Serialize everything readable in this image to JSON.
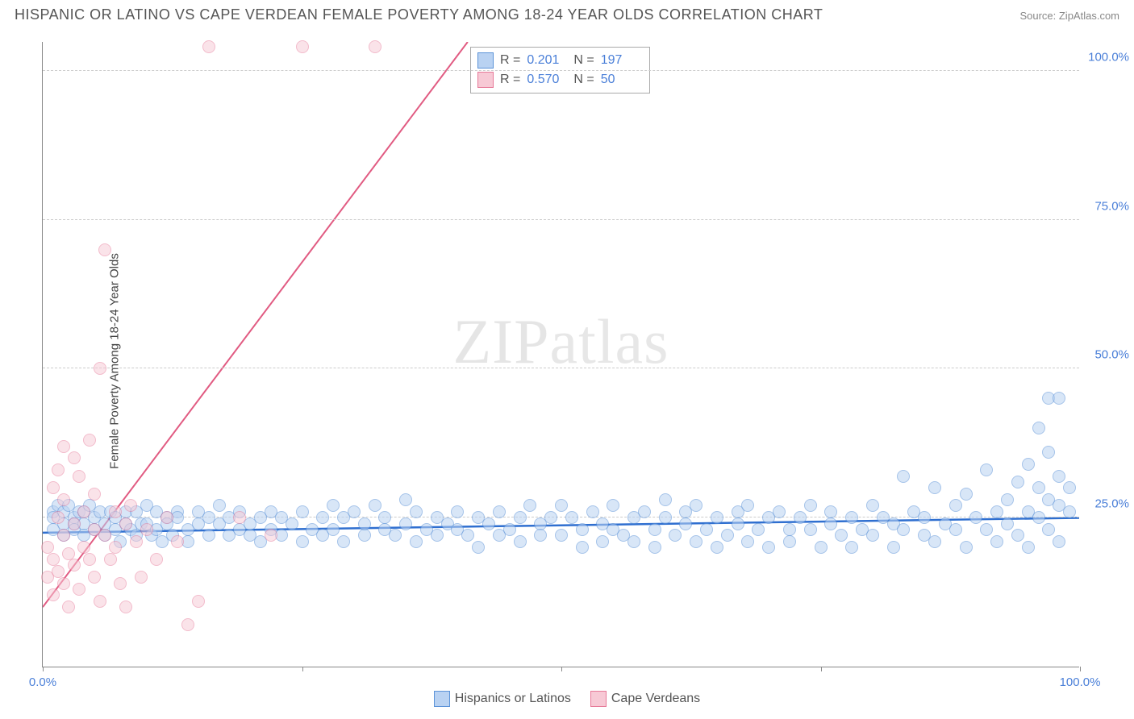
{
  "title": "HISPANIC OR LATINO VS CAPE VERDEAN FEMALE POVERTY AMONG 18-24 YEAR OLDS CORRELATION CHART",
  "source": "Source: ZipAtlas.com",
  "ylabel": "Female Poverty Among 18-24 Year Olds",
  "watermark_a": "ZIP",
  "watermark_b": "atlas",
  "chart": {
    "type": "scatter",
    "xlim": [
      0,
      100
    ],
    "ylim": [
      0,
      105
    ],
    "xtick_min_label": "0.0%",
    "xtick_max_label": "100.0%",
    "xtick_positions": [
      0,
      25,
      50,
      75,
      100
    ],
    "yticks": [
      {
        "v": 25,
        "label": "25.0%"
      },
      {
        "v": 50,
        "label": "50.0%"
      },
      {
        "v": 75,
        "label": "75.0%"
      },
      {
        "v": 100,
        "label": "100.0%"
      }
    ],
    "grid_color": "#cccccc",
    "background_color": "#ffffff",
    "point_radius": 8,
    "point_stroke_w": 1.2,
    "series": [
      {
        "name": "Hispanics or Latinos",
        "fill": "#b9d2f2",
        "stroke": "#5c93d8",
        "fill_opacity": 0.55,
        "trend": {
          "x1": 0,
          "y1": 22.5,
          "x2": 100,
          "y2": 25.0,
          "color": "#2f6fd0",
          "width": 2.5
        },
        "stats": {
          "R": "0.201",
          "N": "197"
        },
        "points": [
          [
            1,
            26
          ],
          [
            1,
            25
          ],
          [
            1,
            23
          ],
          [
            1.5,
            27
          ],
          [
            2,
            26
          ],
          [
            2,
            24
          ],
          [
            2,
            22
          ],
          [
            2.5,
            27
          ],
          [
            3,
            25
          ],
          [
            3,
            24
          ],
          [
            3,
            23
          ],
          [
            3.5,
            26
          ],
          [
            4,
            26
          ],
          [
            4,
            24
          ],
          [
            4,
            22
          ],
          [
            4.5,
            27
          ],
          [
            5,
            25
          ],
          [
            5,
            23
          ],
          [
            5.5,
            26
          ],
          [
            6,
            22
          ],
          [
            6,
            24
          ],
          [
            6.5,
            26
          ],
          [
            7,
            23
          ],
          [
            7,
            25
          ],
          [
            7.5,
            21
          ],
          [
            8,
            26
          ],
          [
            8,
            24
          ],
          [
            8.5,
            23
          ],
          [
            9,
            26
          ],
          [
            9,
            22
          ],
          [
            9.5,
            24
          ],
          [
            10,
            27
          ],
          [
            10,
            24
          ],
          [
            10.5,
            22
          ],
          [
            11,
            26
          ],
          [
            11,
            23
          ],
          [
            11.5,
            21
          ],
          [
            12,
            25
          ],
          [
            12,
            24
          ],
          [
            12.5,
            22
          ],
          [
            13,
            26
          ],
          [
            13,
            25
          ],
          [
            14,
            23
          ],
          [
            14,
            21
          ],
          [
            15,
            26
          ],
          [
            15,
            24
          ],
          [
            16,
            22
          ],
          [
            16,
            25
          ],
          [
            17,
            24
          ],
          [
            17,
            27
          ],
          [
            18,
            22
          ],
          [
            18,
            25
          ],
          [
            19,
            23
          ],
          [
            19,
            26
          ],
          [
            20,
            22
          ],
          [
            20,
            24
          ],
          [
            21,
            25
          ],
          [
            21,
            21
          ],
          [
            22,
            26
          ],
          [
            22,
            23
          ],
          [
            23,
            22
          ],
          [
            23,
            25
          ],
          [
            24,
            24
          ],
          [
            25,
            26
          ],
          [
            25,
            21
          ],
          [
            26,
            23
          ],
          [
            27,
            25
          ],
          [
            27,
            22
          ],
          [
            28,
            27
          ],
          [
            28,
            23
          ],
          [
            29,
            25
          ],
          [
            29,
            21
          ],
          [
            30,
            26
          ],
          [
            31,
            22
          ],
          [
            31,
            24
          ],
          [
            32,
            27
          ],
          [
            33,
            23
          ],
          [
            33,
            25
          ],
          [
            34,
            22
          ],
          [
            35,
            28
          ],
          [
            35,
            24
          ],
          [
            36,
            26
          ],
          [
            36,
            21
          ],
          [
            37,
            23
          ],
          [
            38,
            25
          ],
          [
            38,
            22
          ],
          [
            39,
            24
          ],
          [
            40,
            26
          ],
          [
            40,
            23
          ],
          [
            41,
            22
          ],
          [
            42,
            25
          ],
          [
            42,
            20
          ],
          [
            43,
            24
          ],
          [
            44,
            26
          ],
          [
            44,
            22
          ],
          [
            45,
            23
          ],
          [
            46,
            25
          ],
          [
            46,
            21
          ],
          [
            47,
            27
          ],
          [
            48,
            24
          ],
          [
            48,
            22
          ],
          [
            49,
            25
          ],
          [
            50,
            27
          ],
          [
            50,
            22
          ],
          [
            51,
            25
          ],
          [
            52,
            23
          ],
          [
            52,
            20
          ],
          [
            53,
            26
          ],
          [
            54,
            24
          ],
          [
            54,
            21
          ],
          [
            55,
            27
          ],
          [
            55,
            23
          ],
          [
            56,
            22
          ],
          [
            57,
            25
          ],
          [
            57,
            21
          ],
          [
            58,
            26
          ],
          [
            59,
            23
          ],
          [
            59,
            20
          ],
          [
            60,
            25
          ],
          [
            60,
            28
          ],
          [
            61,
            22
          ],
          [
            62,
            24
          ],
          [
            62,
            26
          ],
          [
            63,
            21
          ],
          [
            63,
            27
          ],
          [
            64,
            23
          ],
          [
            65,
            25
          ],
          [
            65,
            20
          ],
          [
            66,
            22
          ],
          [
            67,
            26
          ],
          [
            67,
            24
          ],
          [
            68,
            21
          ],
          [
            68,
            27
          ],
          [
            69,
            23
          ],
          [
            70,
            25
          ],
          [
            70,
            20
          ],
          [
            71,
            26
          ],
          [
            72,
            23
          ],
          [
            72,
            21
          ],
          [
            73,
            25
          ],
          [
            74,
            27
          ],
          [
            74,
            23
          ],
          [
            75,
            20
          ],
          [
            76,
            26
          ],
          [
            76,
            24
          ],
          [
            77,
            22
          ],
          [
            78,
            25
          ],
          [
            78,
            20
          ],
          [
            79,
            23
          ],
          [
            80,
            27
          ],
          [
            80,
            22
          ],
          [
            81,
            25
          ],
          [
            82,
            24
          ],
          [
            82,
            20
          ],
          [
            83,
            32
          ],
          [
            83,
            23
          ],
          [
            84,
            26
          ],
          [
            85,
            22
          ],
          [
            85,
            25
          ],
          [
            86,
            30
          ],
          [
            86,
            21
          ],
          [
            87,
            24
          ],
          [
            88,
            27
          ],
          [
            88,
            23
          ],
          [
            89,
            29
          ],
          [
            89,
            20
          ],
          [
            90,
            25
          ],
          [
            91,
            23
          ],
          [
            91,
            33
          ],
          [
            92,
            26
          ],
          [
            92,
            21
          ],
          [
            93,
            28
          ],
          [
            93,
            24
          ],
          [
            94,
            31
          ],
          [
            94,
            22
          ],
          [
            95,
            34
          ],
          [
            95,
            26
          ],
          [
            95,
            20
          ],
          [
            96,
            30
          ],
          [
            96,
            25
          ],
          [
            96,
            40
          ],
          [
            97,
            28
          ],
          [
            97,
            23
          ],
          [
            97,
            36
          ],
          [
            97,
            45
          ],
          [
            98,
            32
          ],
          [
            98,
            27
          ],
          [
            98,
            45
          ],
          [
            98,
            21
          ],
          [
            99,
            30
          ],
          [
            99,
            26
          ]
        ]
      },
      {
        "name": "Cape Verdeans",
        "fill": "#f7c9d5",
        "stroke": "#e77a99",
        "fill_opacity": 0.5,
        "trend": {
          "x1": 0,
          "y1": 10,
          "x2": 41,
          "y2": 105,
          "color": "#e15b82",
          "width": 2
        },
        "stats": {
          "R": "0.570",
          "N": "50"
        },
        "points": [
          [
            0.5,
            15
          ],
          [
            0.5,
            20
          ],
          [
            1,
            12
          ],
          [
            1,
            18
          ],
          [
            1,
            30
          ],
          [
            1.5,
            25
          ],
          [
            1.5,
            16
          ],
          [
            1.5,
            33
          ],
          [
            2,
            14
          ],
          [
            2,
            22
          ],
          [
            2,
            28
          ],
          [
            2,
            37
          ],
          [
            2.5,
            10
          ],
          [
            2.5,
            19
          ],
          [
            3,
            24
          ],
          [
            3,
            35
          ],
          [
            3,
            17
          ],
          [
            3.5,
            13
          ],
          [
            3.5,
            32
          ],
          [
            4,
            20
          ],
          [
            4,
            26
          ],
          [
            4.5,
            18
          ],
          [
            4.5,
            38
          ],
          [
            5,
            15
          ],
          [
            5,
            23
          ],
          [
            5,
            29
          ],
          [
            5.5,
            11
          ],
          [
            5.5,
            50
          ],
          [
            6,
            70
          ],
          [
            6,
            22
          ],
          [
            6.5,
            18
          ],
          [
            7,
            26
          ],
          [
            7,
            20
          ],
          [
            7.5,
            14
          ],
          [
            8,
            24
          ],
          [
            8,
            10
          ],
          [
            8.5,
            27
          ],
          [
            9,
            21
          ],
          [
            9.5,
            15
          ],
          [
            10,
            23
          ],
          [
            11,
            18
          ],
          [
            12,
            25
          ],
          [
            13,
            21
          ],
          [
            14,
            7
          ],
          [
            15,
            11
          ],
          [
            16,
            104
          ],
          [
            19,
            25
          ],
          [
            22,
            22
          ],
          [
            25,
            104
          ],
          [
            32,
            104
          ]
        ]
      }
    ]
  },
  "stats_labels": {
    "R": "R  =",
    "N": "N  ="
  },
  "legend_items": [
    {
      "label": "Hispanics or Latinos",
      "fill": "#b9d2f2",
      "stroke": "#5c93d8"
    },
    {
      "label": "Cape Verdeans",
      "fill": "#f7c9d5",
      "stroke": "#e77a99"
    }
  ]
}
